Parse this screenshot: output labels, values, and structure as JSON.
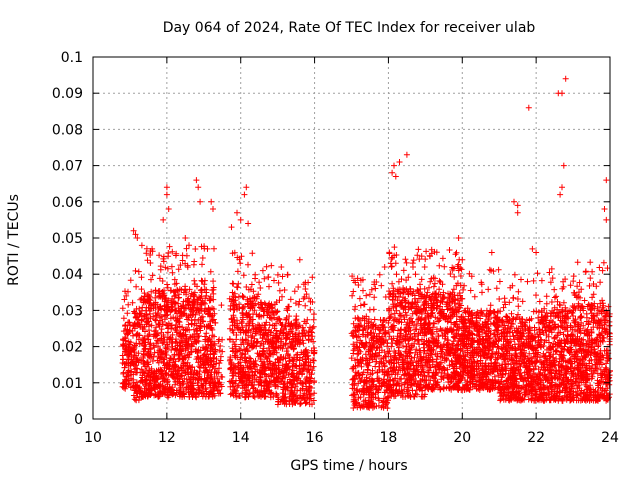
{
  "chart_data": {
    "type": "scatter",
    "title": "Day 064 of 2024, Rate Of TEC Index for receiver ulab",
    "xlabel": "GPS time / hours",
    "ylabel": "ROTI / TECUs",
    "xlim": [
      10,
      24
    ],
    "ylim": [
      0,
      0.1
    ],
    "grid": true,
    "marker": "+",
    "color": "#ff0000",
    "x_ticks": [
      10,
      12,
      14,
      16,
      18,
      20,
      22,
      24
    ],
    "x_tick_labels": [
      "10",
      "12",
      "14",
      "16",
      "18",
      "20",
      "22",
      "24"
    ],
    "y_ticks": [
      0,
      0.01,
      0.02,
      0.03,
      0.04,
      0.05,
      0.06,
      0.07,
      0.08,
      0.09,
      0.1
    ],
    "y_tick_labels": [
      "0",
      "0.01",
      "0.02",
      "0.03",
      "0.04",
      "0.05",
      "0.06",
      "0.07",
      "0.08",
      "0.09",
      "0.1"
    ],
    "series": [
      {
        "name": "ROTI",
        "segments": [
          {
            "x_range": [
              10.8,
              11.1
            ],
            "bulk_range": [
              0.008,
              0.027
            ],
            "points": 120
          },
          {
            "x_range": [
              11.1,
              11.3
            ],
            "bulk_range": [
              0.005,
              0.03
            ],
            "points": 90
          },
          {
            "x_range": [
              11.3,
              13.3
            ],
            "bulk_range": [
              0.006,
              0.036
            ],
            "points": 1100
          },
          {
            "x_range": [
              13.3,
              13.5
            ],
            "bulk_range": [
              0.007,
              0.022
            ],
            "points": 40
          },
          {
            "x_range": [
              14.5,
              15.0
            ],
            "bulk_range": [
              0.006,
              0.032
            ],
            "points": 260
          },
          {
            "x_range": [
              15.0,
              16.0
            ],
            "bulk_range": [
              0.004,
              0.028
            ],
            "points": 420
          },
          {
            "x_range": [
              13.7,
              14.5
            ],
            "bulk_range": [
              0.006,
              0.034
            ],
            "points": 380
          },
          {
            "x_range": [
              17.0,
              18.0
            ],
            "bulk_range": [
              0.003,
              0.028
            ],
            "points": 420
          },
          {
            "x_range": [
              18.0,
              19.0
            ],
            "bulk_range": [
              0.006,
              0.036
            ],
            "points": 520
          },
          {
            "x_range": [
              19.0,
              20.0
            ],
            "bulk_range": [
              0.008,
              0.035
            ],
            "points": 540
          },
          {
            "x_range": [
              20.0,
              21.0
            ],
            "bulk_range": [
              0.008,
              0.03
            ],
            "points": 520
          },
          {
            "x_range": [
              21.0,
              22.0
            ],
            "bulk_range": [
              0.005,
              0.028
            ],
            "points": 520
          },
          {
            "x_range": [
              22.0,
              23.0
            ],
            "bulk_range": [
              0.005,
              0.03
            ],
            "points": 520
          },
          {
            "x_range": [
              23.0,
              24.0
            ],
            "bulk_range": [
              0.005,
              0.032
            ],
            "points": 520
          }
        ],
        "outliers": [
          [
            10.85,
            0.033
          ],
          [
            10.9,
            0.034
          ],
          [
            11.1,
            0.052
          ],
          [
            11.15,
            0.051
          ],
          [
            11.2,
            0.05
          ],
          [
            11.6,
            0.047
          ],
          [
            12.0,
            0.064
          ],
          [
            12.0,
            0.062
          ],
          [
            12.05,
            0.058
          ],
          [
            11.9,
            0.055
          ],
          [
            12.5,
            0.05
          ],
          [
            12.6,
            0.048
          ],
          [
            12.8,
            0.066
          ],
          [
            12.85,
            0.064
          ],
          [
            12.9,
            0.06
          ],
          [
            13.1,
            0.047
          ],
          [
            13.2,
            0.06
          ],
          [
            13.25,
            0.058
          ],
          [
            13.75,
            0.053
          ],
          [
            13.9,
            0.057
          ],
          [
            14.0,
            0.055
          ],
          [
            14.1,
            0.062
          ],
          [
            14.15,
            0.064
          ],
          [
            14.2,
            0.054
          ],
          [
            14.6,
            0.041
          ],
          [
            15.1,
            0.042
          ],
          [
            15.6,
            0.044
          ],
          [
            17.1,
            0.031
          ],
          [
            17.9,
            0.042
          ],
          [
            18.1,
            0.068
          ],
          [
            18.15,
            0.07
          ],
          [
            18.2,
            0.067
          ],
          [
            18.3,
            0.071
          ],
          [
            18.5,
            0.073
          ],
          [
            18.9,
            0.045
          ],
          [
            19.9,
            0.05
          ],
          [
            20.0,
            0.044
          ],
          [
            20.8,
            0.046
          ],
          [
            21.4,
            0.06
          ],
          [
            21.5,
            0.059
          ],
          [
            21.5,
            0.057
          ],
          [
            21.8,
            0.086
          ],
          [
            22.6,
            0.09
          ],
          [
            22.7,
            0.09
          ],
          [
            22.75,
            0.07
          ],
          [
            22.8,
            0.094
          ],
          [
            22.7,
            0.064
          ],
          [
            22.65,
            0.062
          ],
          [
            23.9,
            0.066
          ],
          [
            23.85,
            0.058
          ],
          [
            23.9,
            0.055
          ],
          [
            23.8,
            0.041
          ],
          [
            21.9,
            0.047
          ],
          [
            22.0,
            0.046
          ]
        ]
      }
    ]
  }
}
